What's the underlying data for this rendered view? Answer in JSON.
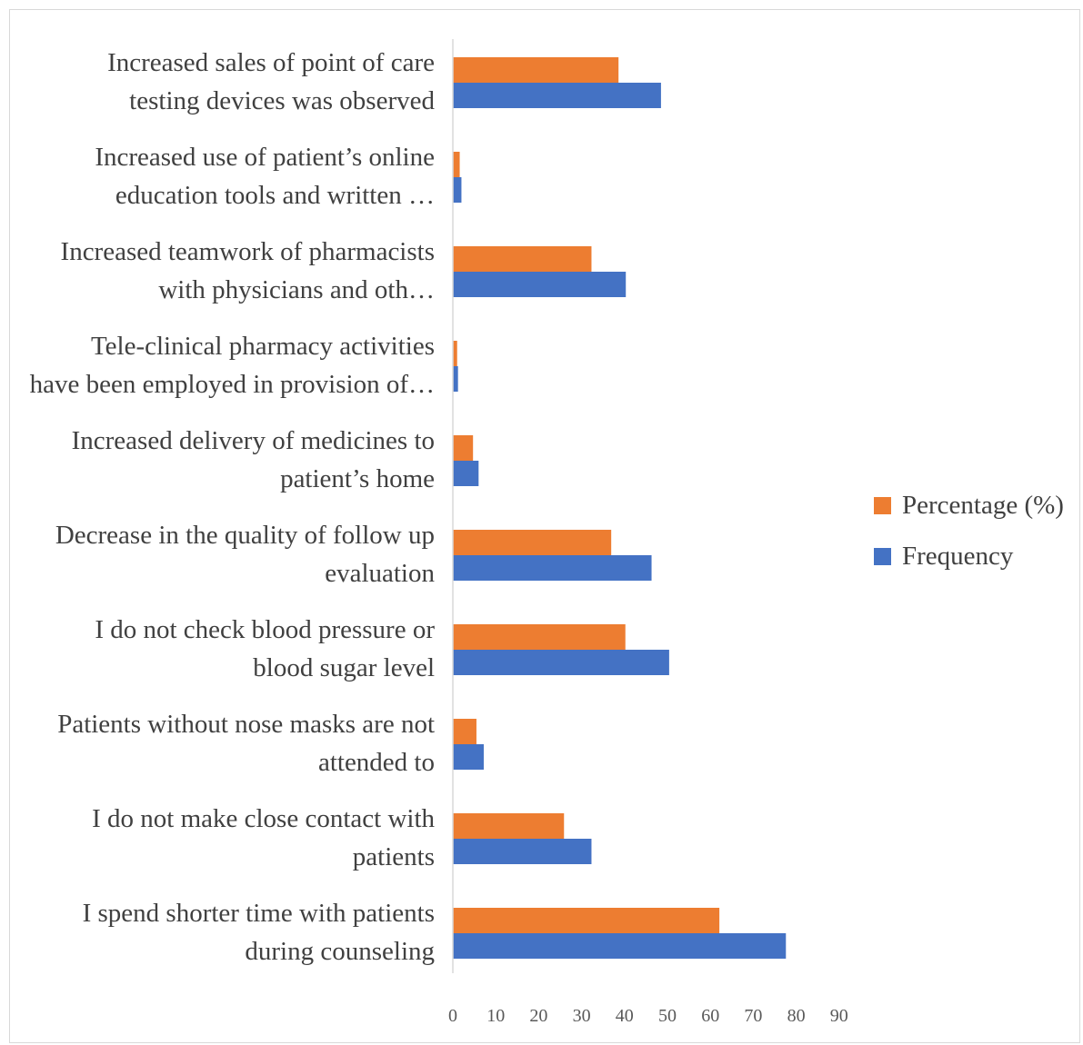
{
  "chart_data": {
    "type": "bar",
    "orientation": "horizontal",
    "categories": [
      [
        "Increased sales of point of care",
        "testing devices was observed"
      ],
      [
        "Increased use of patient’s online",
        "education tools and written …"
      ],
      [
        "Increased teamwork of pharmacists",
        "with physicians and oth…"
      ],
      [
        "Tele-clinical pharmacy activities",
        "have been employed in provision of…"
      ],
      [
        "Increased delivery of medicines to",
        "patient’s home"
      ],
      [
        "Decrease in the quality of follow up",
        "evaluation"
      ],
      [
        "I do not check blood pressure or",
        "blood sugar level"
      ],
      [
        "Patients without nose masks are not",
        "attended to"
      ],
      [
        "I do not make close contact with",
        "patients"
      ],
      [
        "I spend shorter time with patients",
        "during counseling"
      ]
    ],
    "series": [
      {
        "name": "Percentage (%)",
        "color": "#ED7D31",
        "values": [
          38.6,
          1.6,
          32.3,
          1.0,
          4.7,
          36.9,
          40.2,
          5.5,
          25.9,
          62.1
        ]
      },
      {
        "name": "Frequency",
        "color": "#4472C4",
        "values": [
          48.5,
          2.0,
          40.3,
          1.2,
          6.0,
          46.3,
          50.4,
          7.2,
          32.3,
          77.6
        ]
      }
    ],
    "x_ticks": [
      "0",
      "10",
      "20",
      "30",
      "40",
      "50",
      "60",
      "70",
      "80",
      "90"
    ],
    "xlim": [
      0,
      90
    ],
    "legend": "right",
    "grid": false
  }
}
